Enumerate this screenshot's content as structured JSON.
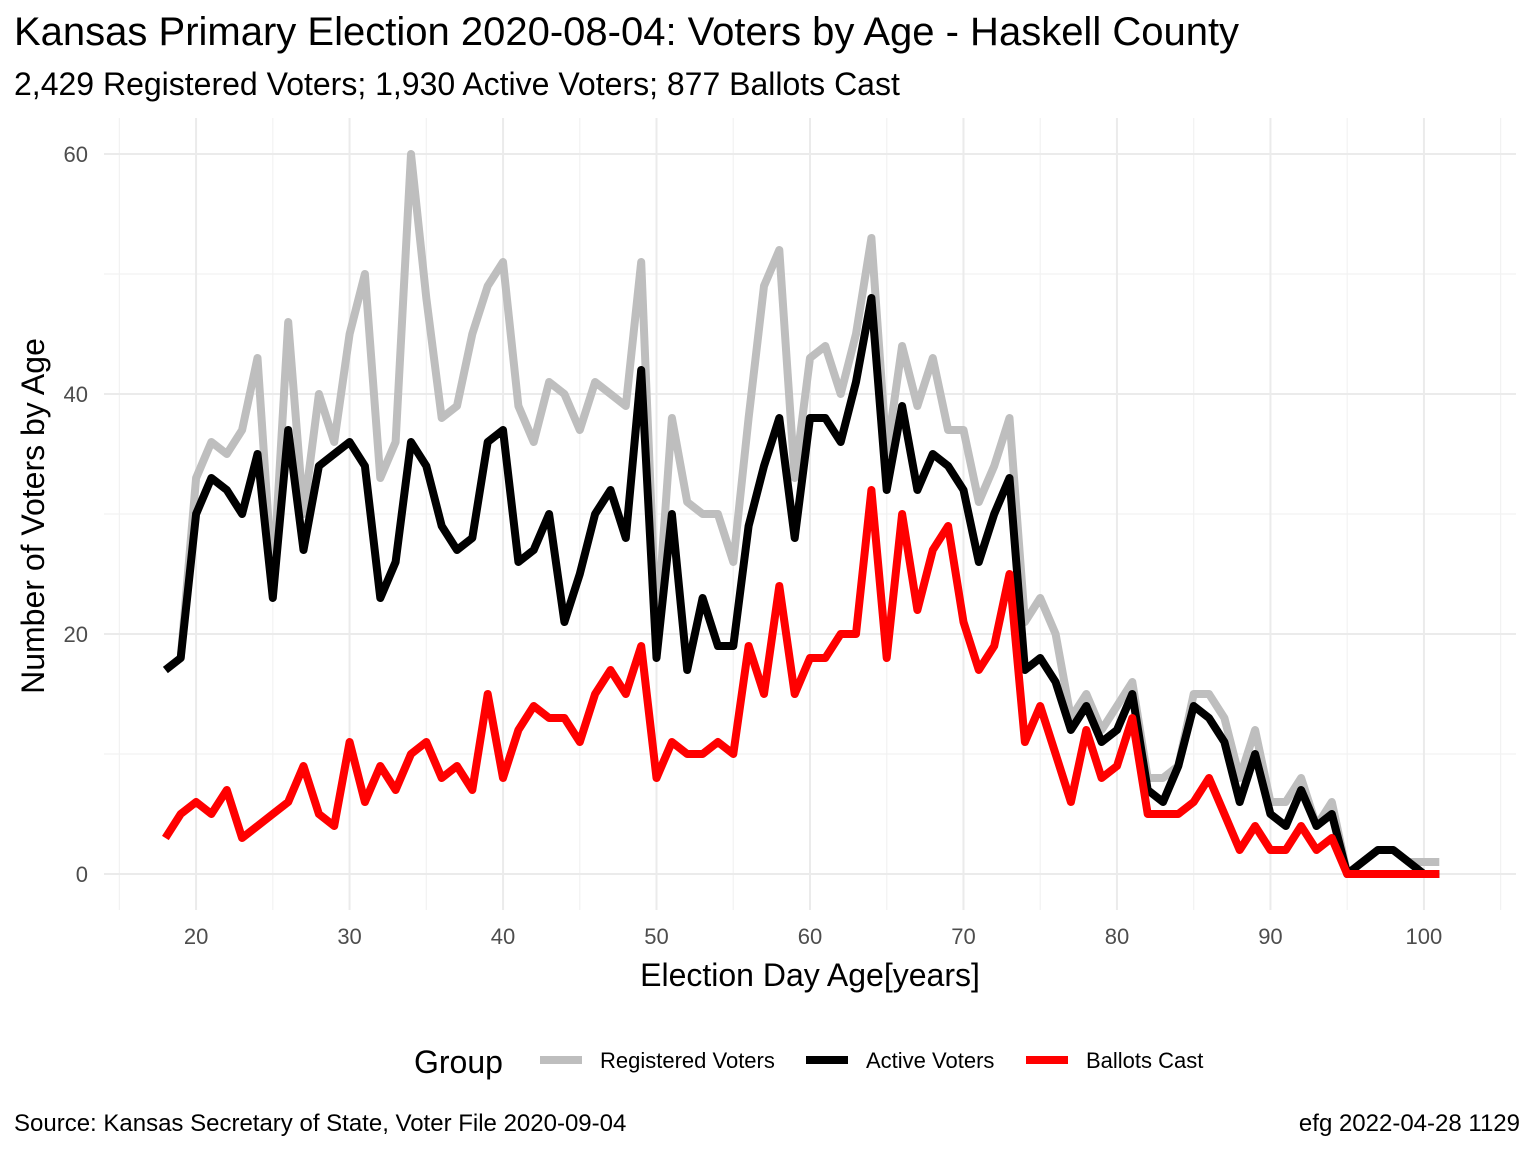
{
  "chart_data": {
    "type": "line",
    "title": "Kansas Primary Election 2020-08-04:  Voters by Age - Haskell County",
    "subtitle": "2,429 Registered Voters; 1,930 Active Voters; 877 Ballots Cast",
    "xlabel": "Election Day Age[years]",
    "ylabel": "Number of Voters by Age",
    "xlim": [
      14,
      106
    ],
    "ylim": [
      -3,
      63
    ],
    "x_ticks": [
      20,
      30,
      40,
      50,
      60,
      70,
      80,
      90,
      100
    ],
    "y_ticks": [
      0,
      20,
      40,
      60
    ],
    "grid": true,
    "legend": {
      "title": "Group",
      "position": "bottom"
    },
    "caption_left": "Source:  Kansas Secretary of State, Voter File  2020-09-04",
    "caption_right": "efg 2022-04-28 1129",
    "x": [
      18,
      19,
      20,
      21,
      22,
      23,
      24,
      25,
      26,
      27,
      28,
      29,
      30,
      31,
      32,
      33,
      34,
      35,
      36,
      37,
      38,
      39,
      40,
      41,
      42,
      43,
      44,
      45,
      46,
      47,
      48,
      49,
      50,
      51,
      52,
      53,
      54,
      55,
      56,
      57,
      58,
      59,
      60,
      61,
      62,
      63,
      64,
      65,
      66,
      67,
      68,
      69,
      70,
      71,
      72,
      73,
      74,
      75,
      76,
      77,
      78,
      79,
      80,
      81,
      82,
      83,
      84,
      85,
      86,
      87,
      88,
      89,
      90,
      91,
      92,
      93,
      94,
      95,
      96,
      97,
      98,
      99,
      100,
      101
    ],
    "series": [
      {
        "name": "Registered Voters",
        "color": "#bebebe",
        "values": [
          17,
          18,
          33,
          36,
          35,
          37,
          43,
          24,
          46,
          30,
          40,
          36,
          45,
          50,
          33,
          36,
          60,
          48,
          38,
          39,
          45,
          49,
          51,
          39,
          36,
          41,
          40,
          37,
          41,
          40,
          39,
          51,
          20,
          38,
          31,
          30,
          30,
          26,
          38,
          49,
          52,
          33,
          43,
          44,
          40,
          45,
          53,
          35,
          44,
          39,
          43,
          37,
          37,
          31,
          34,
          38,
          21,
          23,
          20,
          13,
          15,
          12,
          14,
          16,
          8,
          8,
          9,
          15,
          15,
          13,
          8,
          12,
          6,
          6,
          8,
          4,
          6,
          0,
          1,
          2,
          2,
          1,
          1,
          1
        ]
      },
      {
        "name": "Active Voters",
        "color": "#000000",
        "values": [
          17,
          18,
          30,
          33,
          32,
          30,
          35,
          23,
          37,
          27,
          34,
          35,
          36,
          34,
          23,
          26,
          36,
          34,
          29,
          27,
          28,
          36,
          37,
          26,
          27,
          30,
          21,
          25,
          30,
          32,
          28,
          42,
          18,
          30,
          17,
          23,
          19,
          19,
          29,
          34,
          38,
          28,
          38,
          38,
          36,
          41,
          48,
          32,
          39,
          32,
          35,
          34,
          32,
          26,
          30,
          33,
          17,
          18,
          16,
          12,
          14,
          11,
          12,
          15,
          7,
          6,
          9,
          14,
          13,
          11,
          6,
          10,
          5,
          4,
          7,
          4,
          5,
          0,
          1,
          2,
          2,
          1,
          0,
          0
        ]
      },
      {
        "name": "Ballots Cast",
        "color": "#ff0000",
        "values": [
          3,
          5,
          6,
          5,
          7,
          3,
          4,
          5,
          6,
          9,
          5,
          4,
          11,
          6,
          9,
          7,
          10,
          11,
          8,
          9,
          7,
          15,
          8,
          12,
          14,
          13,
          13,
          11,
          15,
          17,
          15,
          19,
          8,
          11,
          10,
          10,
          11,
          10,
          19,
          15,
          24,
          15,
          18,
          18,
          20,
          20,
          32,
          18,
          30,
          22,
          27,
          29,
          21,
          17,
          19,
          25,
          11,
          14,
          10,
          6,
          12,
          8,
          9,
          13,
          5,
          5,
          5,
          6,
          8,
          5,
          2,
          4,
          2,
          2,
          4,
          2,
          3,
          0,
          0,
          0,
          0,
          0,
          0,
          0
        ]
      }
    ]
  }
}
